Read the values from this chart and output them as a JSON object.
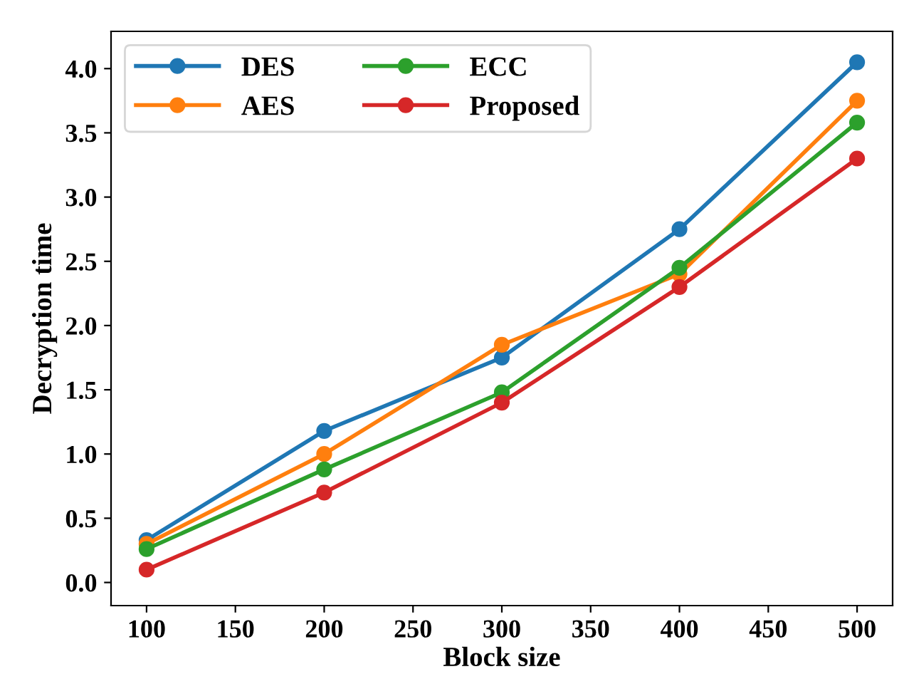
{
  "chart_data": {
    "type": "line",
    "xlabel": "Block size",
    "ylabel": "Decryption time",
    "x": [
      100,
      200,
      300,
      400,
      500
    ],
    "series": [
      {
        "name": "DES",
        "color": "#1f77b4",
        "values": [
          0.33,
          1.18,
          1.75,
          2.75,
          4.05
        ]
      },
      {
        "name": "AES",
        "color": "#ff7f0e",
        "values": [
          0.3,
          1.0,
          1.85,
          2.4,
          3.75
        ]
      },
      {
        "name": "ECC",
        "color": "#2ca02c",
        "values": [
          0.26,
          0.88,
          1.48,
          2.45,
          3.58
        ]
      },
      {
        "name": "Proposed",
        "color": "#d62728",
        "values": [
          0.1,
          0.7,
          1.4,
          2.3,
          3.3
        ]
      }
    ],
    "xlim": [
      80,
      520
    ],
    "ylim": [
      -0.18,
      4.29
    ],
    "xticks": [
      100,
      150,
      200,
      250,
      300,
      350,
      400,
      450,
      500
    ],
    "yticks": [
      {
        "value": 0,
        "label": "0.0"
      },
      {
        "value": 0.5,
        "label": "0.5"
      },
      {
        "value": 1,
        "label": "1.0"
      },
      {
        "value": 1.5,
        "label": "1.5"
      },
      {
        "value": 2,
        "label": "2.0"
      },
      {
        "value": 2.5,
        "label": "2.5"
      },
      {
        "value": 3,
        "label": "3.0"
      },
      {
        "value": 3.5,
        "label": "3.5"
      },
      {
        "value": 4,
        "label": "4.0"
      }
    ],
    "marker": "circle",
    "line_style": "solid",
    "legend": "top left",
    "grid": false
  }
}
